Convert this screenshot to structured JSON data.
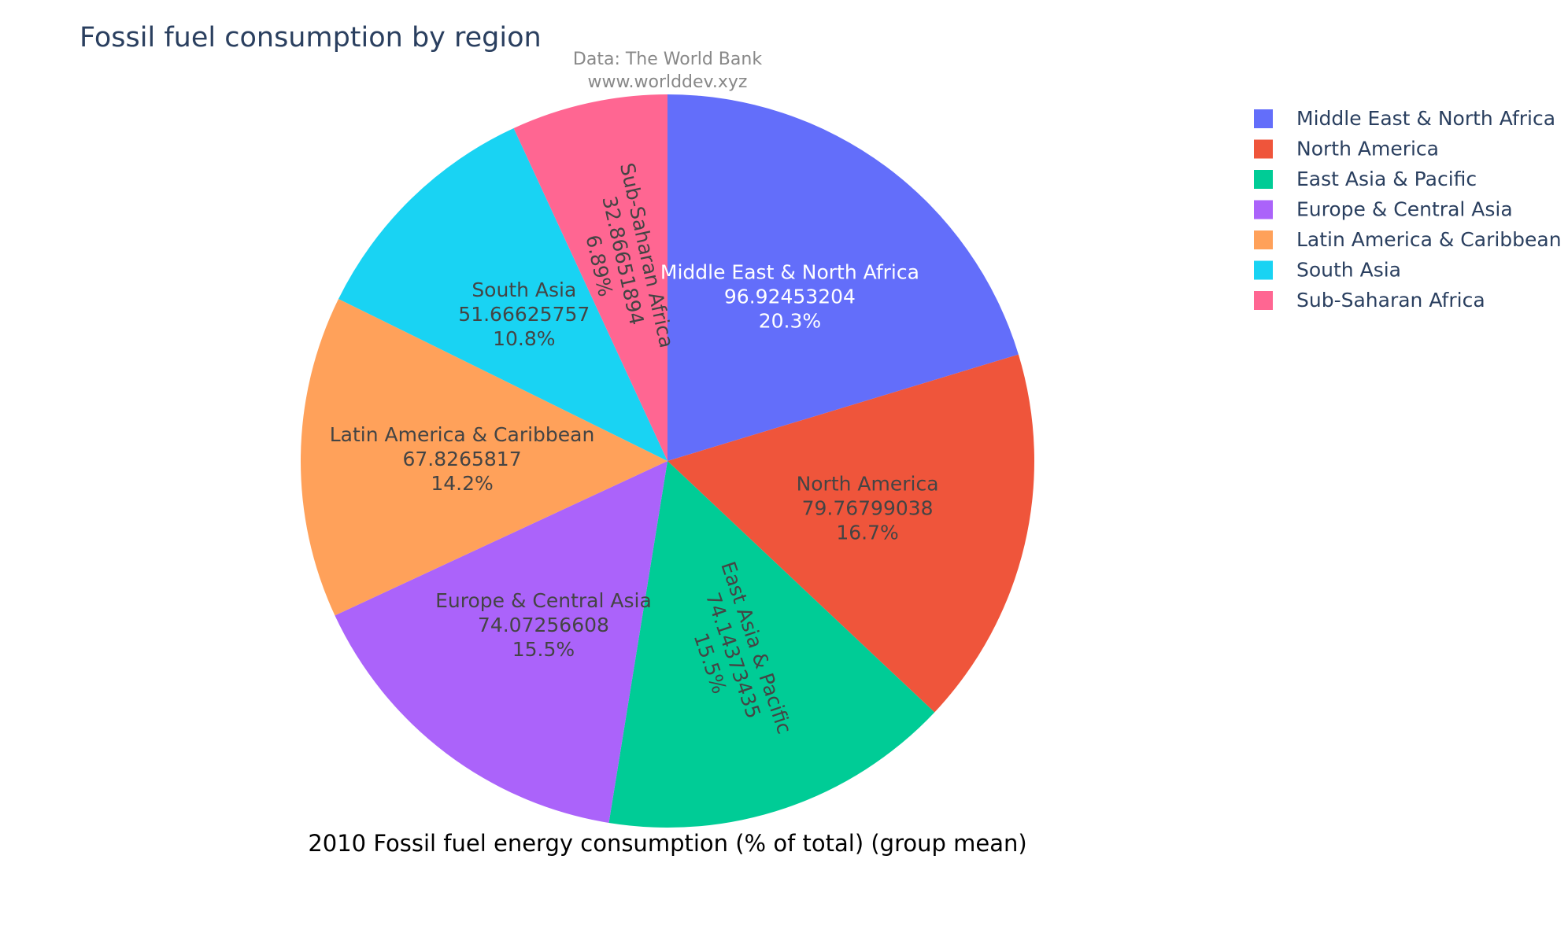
{
  "chart_data": {
    "type": "pie",
    "title": "Fossil fuel consumption by region",
    "annotation": [
      "Data: The World Bank",
      "www.worlddev.xyz"
    ],
    "xlabel": "2010 Fossil fuel energy consumption (% of total) (group mean)",
    "legend_position": "right",
    "slices": [
      {
        "label": "Middle East & North Africa",
        "value_text": "96.92453204",
        "value": 96.92453204,
        "percent": "20.3%",
        "color": "#636efa",
        "text_color": "#ffffff"
      },
      {
        "label": "North America",
        "value_text": "79.76799038",
        "value": 79.76799038,
        "percent": "16.7%",
        "color": "#ef553b",
        "text_color": "#444444"
      },
      {
        "label": "East Asia & Pacific",
        "value_text": "74.14373435",
        "value": 74.14373435,
        "percent": "15.5%",
        "color": "#00cc96",
        "text_color": "#444444"
      },
      {
        "label": "Europe & Central Asia",
        "value_text": "74.07256608",
        "value": 74.07256608,
        "percent": "15.5%",
        "color": "#ab63fa",
        "text_color": "#444444"
      },
      {
        "label": "Latin America & Caribbean",
        "value_text": "67.8265817",
        "value": 67.8265817,
        "percent": "14.2%",
        "color": "#ffa15a",
        "text_color": "#444444"
      },
      {
        "label": "South Asia",
        "value_text": "51.66625757",
        "value": 51.66625757,
        "percent": "10.8%",
        "color": "#19d3f3",
        "text_color": "#444444"
      },
      {
        "label": "Sub-Saharan Africa",
        "value_text": "32.86651894",
        "value": 32.86651894,
        "percent": "6.89%",
        "color": "#ff6692",
        "text_color": "#444444"
      }
    ]
  }
}
